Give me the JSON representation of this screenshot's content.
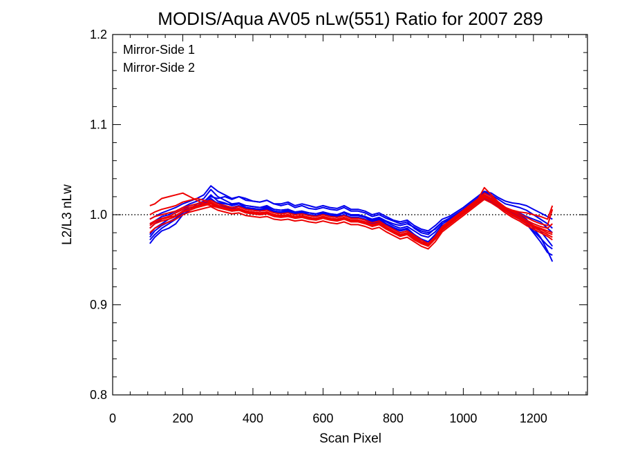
{
  "chart_data": {
    "type": "line",
    "title": "MODIS/Aqua AV05 nLw(551) Ratio for 2007 289",
    "xlabel": "Scan Pixel",
    "ylabel": "L2/L3 nLw",
    "xlim": [
      0,
      1354
    ],
    "ylim": [
      0.8,
      1.2
    ],
    "xticks": [
      0,
      200,
      400,
      600,
      800,
      1000,
      1200
    ],
    "xtick_labels": [
      "0",
      "200",
      "400",
      "600",
      "800",
      "1000",
      "1200"
    ],
    "yticks": [
      0.8,
      0.9,
      1.0,
      1.1,
      1.2
    ],
    "ytick_labels": [
      "0.8",
      "0.9",
      "1.0",
      "1.1",
      "1.2"
    ],
    "reference_line": {
      "y": 1.0,
      "style": "dotted",
      "color": "#000000"
    },
    "legend": {
      "placement": "top-left",
      "entries": [
        {
          "label": "Mirror-Side 1",
          "color": "#0000ee"
        },
        {
          "label": "Mirror-Side 2",
          "color": "#ee0000"
        }
      ]
    },
    "x": [
      106,
      120,
      140,
      160,
      180,
      200,
      220,
      240,
      260,
      280,
      300,
      320,
      340,
      360,
      380,
      400,
      420,
      440,
      460,
      480,
      500,
      520,
      540,
      560,
      580,
      600,
      620,
      640,
      660,
      680,
      700,
      720,
      740,
      760,
      780,
      800,
      820,
      840,
      860,
      880,
      900,
      920,
      940,
      960,
      980,
      1000,
      1020,
      1040,
      1060,
      1080,
      1100,
      1120,
      1140,
      1160,
      1180,
      1200,
      1220,
      1240,
      1254
    ],
    "series": [
      {
        "group": "Mirror-Side 1",
        "color": "#0000ee",
        "values": [
          0.968,
          0.975,
          0.982,
          0.985,
          0.99,
          1.0,
          1.005,
          1.012,
          1.015,
          1.02,
          1.018,
          1.02,
          1.017,
          1.02,
          1.018,
          1.015,
          1.014,
          1.016,
          1.012,
          1.01,
          1.012,
          1.008,
          1.01,
          1.007,
          1.006,
          1.008,
          1.006,
          1.005,
          1.008,
          1.004,
          1.004,
          1.002,
          0.998,
          1.0,
          0.996,
          0.993,
          0.99,
          0.992,
          0.985,
          0.98,
          0.978,
          0.985,
          0.992,
          0.995,
          1.0,
          1.003,
          1.01,
          1.015,
          1.018,
          1.015,
          1.012,
          1.008,
          1.003,
          1.0,
          0.995,
          0.985,
          0.975,
          0.96,
          0.948
        ]
      },
      {
        "group": "Mirror-Side 1",
        "color": "#0000ee",
        "values": [
          0.972,
          0.978,
          0.985,
          0.99,
          0.995,
          1.002,
          1.008,
          1.01,
          1.012,
          1.016,
          1.013,
          1.012,
          1.011,
          1.013,
          1.01,
          1.009,
          1.008,
          1.01,
          1.006,
          1.005,
          1.006,
          1.003,
          1.004,
          1.002,
          1.001,
          1.003,
          1.001,
          1.0,
          1.002,
          0.999,
          0.999,
          0.997,
          0.993,
          0.995,
          0.99,
          0.986,
          0.983,
          0.985,
          0.978,
          0.972,
          0.97,
          0.978,
          0.988,
          0.992,
          0.997,
          1.002,
          1.008,
          1.014,
          1.018,
          1.015,
          1.01,
          1.005,
          1.0,
          0.996,
          0.99,
          0.98,
          0.97,
          0.958,
          0.955
        ]
      },
      {
        "group": "Mirror-Side 1",
        "color": "#0000ee",
        "values": [
          0.978,
          0.985,
          0.99,
          0.995,
          0.998,
          1.004,
          1.008,
          1.01,
          1.013,
          1.018,
          1.012,
          1.01,
          1.008,
          1.01,
          1.007,
          1.006,
          1.005,
          1.007,
          1.004,
          1.003,
          1.004,
          1.001,
          1.002,
          1.0,
          0.999,
          1.001,
          0.999,
          0.998,
          1.0,
          0.997,
          0.997,
          0.995,
          0.992,
          0.994,
          0.989,
          0.985,
          0.982,
          0.984,
          0.978,
          0.973,
          0.97,
          0.976,
          0.985,
          0.99,
          0.996,
          1.002,
          1.009,
          1.016,
          1.022,
          1.018,
          1.012,
          1.006,
          1.002,
          0.998,
          0.993,
          0.988,
          0.982,
          0.972,
          0.965
        ]
      },
      {
        "group": "Mirror-Side 1",
        "color": "#0000ee",
        "values": [
          0.985,
          0.99,
          0.995,
          0.998,
          1.002,
          1.006,
          1.01,
          1.012,
          1.014,
          1.022,
          1.015,
          1.013,
          1.01,
          1.012,
          1.008,
          1.007,
          1.006,
          1.008,
          1.004,
          1.003,
          1.005,
          1.002,
          1.003,
          1.0,
          0.999,
          1.002,
          1.0,
          0.999,
          1.003,
          0.999,
          0.999,
          0.997,
          0.994,
          0.996,
          0.992,
          0.988,
          0.985,
          0.987,
          0.982,
          0.977,
          0.975,
          0.981,
          0.99,
          0.994,
          0.999,
          1.004,
          1.01,
          1.017,
          1.024,
          1.02,
          1.014,
          1.008,
          1.004,
          1.002,
          0.998,
          0.995,
          0.992,
          0.985,
          0.98
        ]
      },
      {
        "group": "Mirror-Side 1",
        "color": "#0000ee",
        "values": [
          0.99,
          0.993,
          0.998,
          1.0,
          1.004,
          1.008,
          1.012,
          1.015,
          1.018,
          1.028,
          1.02,
          1.016,
          1.012,
          1.013,
          1.01,
          1.009,
          1.008,
          1.009,
          1.006,
          1.005,
          1.006,
          1.003,
          1.004,
          1.002,
          1.001,
          1.003,
          1.001,
          1.0,
          1.003,
          1.0,
          1.0,
          0.998,
          0.995,
          0.997,
          0.993,
          0.99,
          0.988,
          0.99,
          0.986,
          0.982,
          0.98,
          0.984,
          0.992,
          0.996,
          1.001,
          1.006,
          1.012,
          1.018,
          1.025,
          1.022,
          1.017,
          1.012,
          1.01,
          1.008,
          1.005,
          1.0,
          0.995,
          0.99,
          0.985
        ]
      },
      {
        "group": "Mirror-Side 1",
        "color": "#0000ee",
        "values": [
          0.995,
          0.998,
          1.002,
          1.005,
          1.008,
          1.012,
          1.015,
          1.018,
          1.022,
          1.032,
          1.026,
          1.022,
          1.018,
          1.02,
          1.016,
          1.015,
          1.014,
          1.016,
          1.012,
          1.012,
          1.014,
          1.01,
          1.012,
          1.01,
          1.008,
          1.01,
          1.008,
          1.007,
          1.01,
          1.006,
          1.006,
          1.004,
          1.0,
          1.002,
          0.998,
          0.994,
          0.992,
          0.994,
          0.988,
          0.984,
          0.982,
          0.988,
          0.995,
          0.998,
          1.003,
          1.008,
          1.014,
          1.02,
          1.026,
          1.024,
          1.019,
          1.015,
          1.013,
          1.012,
          1.01,
          1.006,
          1.002,
          0.998,
          0.995
        ]
      },
      {
        "group": "Mirror-Side 1",
        "color": "#0000ee",
        "values": [
          0.975,
          0.982,
          0.988,
          0.992,
          0.996,
          1.003,
          1.006,
          1.009,
          1.011,
          1.014,
          1.01,
          1.009,
          1.007,
          1.009,
          1.006,
          1.005,
          1.004,
          1.006,
          1.003,
          1.002,
          1.003,
          1.0,
          1.001,
          0.999,
          0.998,
          1.0,
          0.998,
          0.997,
          0.999,
          0.996,
          0.996,
          0.994,
          0.99,
          0.992,
          0.988,
          0.984,
          0.98,
          0.982,
          0.976,
          0.97,
          0.968,
          0.975,
          0.986,
          0.991,
          0.996,
          1.001,
          1.007,
          1.013,
          1.017,
          1.014,
          1.009,
          1.004,
          0.999,
          0.995,
          0.99,
          0.982,
          0.974,
          0.966,
          0.962
        ]
      },
      {
        "group": "Mirror-Side 2",
        "color": "#ee0000",
        "values": [
          0.985,
          0.99,
          0.993,
          0.995,
          0.998,
          1.003,
          1.005,
          1.008,
          1.01,
          1.012,
          1.008,
          1.006,
          1.004,
          1.005,
          1.003,
          1.002,
          1.001,
          1.002,
          0.999,
          0.998,
          0.999,
          0.997,
          0.998,
          0.996,
          0.995,
          0.997,
          0.995,
          0.994,
          0.996,
          0.993,
          0.993,
          0.991,
          0.988,
          0.99,
          0.985,
          0.98,
          0.976,
          0.978,
          0.972,
          0.968,
          0.966,
          0.974,
          0.984,
          0.99,
          0.996,
          1.002,
          1.008,
          1.014,
          1.02,
          1.016,
          1.01,
          1.004,
          0.999,
          0.995,
          0.99,
          0.986,
          0.982,
          0.978,
          0.975
        ]
      },
      {
        "group": "Mirror-Side 2",
        "color": "#ee0000",
        "values": [
          0.99,
          0.993,
          0.996,
          0.998,
          1.002,
          1.006,
          1.008,
          1.01,
          1.012,
          1.014,
          1.01,
          1.008,
          1.006,
          1.007,
          1.004,
          1.003,
          1.002,
          1.003,
          1.0,
          0.999,
          1.0,
          0.998,
          0.999,
          0.997,
          0.996,
          0.998,
          0.996,
          0.995,
          0.997,
          0.994,
          0.994,
          0.992,
          0.989,
          0.991,
          0.986,
          0.982,
          0.978,
          0.98,
          0.975,
          0.97,
          0.967,
          0.975,
          0.986,
          0.992,
          0.998,
          1.004,
          1.01,
          1.016,
          1.022,
          1.018,
          1.012,
          1.006,
          1.001,
          0.997,
          0.992,
          0.988,
          0.985,
          0.982,
          0.98
        ]
      },
      {
        "group": "Mirror-Side 2",
        "color": "#ee0000",
        "values": [
          1.01,
          1.012,
          1.018,
          1.02,
          1.022,
          1.024,
          1.02,
          1.016,
          1.012,
          1.01,
          1.008,
          1.006,
          1.004,
          1.005,
          1.002,
          1.001,
          1.0,
          1.001,
          0.998,
          0.997,
          0.998,
          0.996,
          0.997,
          0.995,
          0.994,
          0.996,
          0.994,
          0.993,
          0.995,
          0.992,
          0.992,
          0.99,
          0.987,
          0.989,
          0.984,
          0.98,
          0.976,
          0.978,
          0.973,
          0.968,
          0.965,
          0.973,
          0.983,
          0.989,
          0.995,
          1.001,
          1.007,
          1.013,
          1.019,
          1.015,
          1.01,
          1.008,
          1.005,
          1.003,
          1.002,
          1.0,
          0.998,
          0.995,
          1.01
        ]
      },
      {
        "group": "Mirror-Side 2",
        "color": "#ee0000",
        "values": [
          0.995,
          0.998,
          1.0,
          1.002,
          1.004,
          1.008,
          1.01,
          1.012,
          1.014,
          1.016,
          1.012,
          1.01,
          1.008,
          1.009,
          1.006,
          1.005,
          1.004,
          1.005,
          1.002,
          1.001,
          1.002,
          1.0,
          1.001,
          0.999,
          0.998,
          1.0,
          0.998,
          0.997,
          0.999,
          0.996,
          0.996,
          0.994,
          0.991,
          0.993,
          0.988,
          0.984,
          0.98,
          0.982,
          0.977,
          0.972,
          0.968,
          0.976,
          0.987,
          0.993,
          0.999,
          1.005,
          1.011,
          1.017,
          1.024,
          1.02,
          1.014,
          1.008,
          1.003,
          0.999,
          0.994,
          0.99,
          0.987,
          0.985,
          0.99
        ]
      },
      {
        "group": "Mirror-Side 2",
        "color": "#ee0000",
        "values": [
          0.98,
          0.985,
          0.989,
          0.992,
          0.995,
          1.0,
          1.003,
          1.005,
          1.007,
          1.009,
          1.005,
          1.003,
          1.001,
          1.002,
          0.999,
          0.998,
          0.997,
          0.998,
          0.995,
          0.994,
          0.995,
          0.993,
          0.994,
          0.992,
          0.991,
          0.993,
          0.991,
          0.99,
          0.992,
          0.989,
          0.989,
          0.987,
          0.984,
          0.986,
          0.981,
          0.977,
          0.973,
          0.975,
          0.97,
          0.965,
          0.962,
          0.97,
          0.981,
          0.987,
          0.993,
          0.999,
          1.005,
          1.011,
          1.017,
          1.013,
          1.008,
          1.002,
          0.997,
          0.993,
          0.988,
          0.984,
          0.98,
          0.976,
          0.972
        ]
      },
      {
        "group": "Mirror-Side 2",
        "color": "#ee0000",
        "values": [
          1.0,
          1.003,
          1.006,
          1.008,
          1.01,
          1.014,
          1.016,
          1.018,
          1.016,
          1.014,
          1.01,
          1.008,
          1.006,
          1.007,
          1.004,
          1.003,
          1.002,
          1.003,
          1.0,
          0.999,
          1.0,
          0.998,
          0.999,
          0.997,
          0.996,
          0.998,
          0.996,
          0.995,
          0.997,
          0.994,
          0.994,
          0.992,
          0.989,
          0.991,
          0.986,
          0.982,
          0.978,
          0.98,
          0.975,
          0.97,
          0.966,
          0.974,
          0.985,
          0.991,
          0.997,
          1.003,
          1.009,
          1.016,
          1.03,
          1.022,
          1.014,
          1.008,
          1.004,
          1.001,
          0.997,
          0.993,
          0.99,
          0.988,
          1.006
        ]
      },
      {
        "group": "Mirror-Side 2",
        "color": "#ee0000",
        "values": [
          0.988,
          0.992,
          0.995,
          0.997,
          0.999,
          1.004,
          1.006,
          1.009,
          1.011,
          1.013,
          1.009,
          1.007,
          1.005,
          1.006,
          1.003,
          1.002,
          1.001,
          1.002,
          0.999,
          0.998,
          0.999,
          0.997,
          0.998,
          0.996,
          0.995,
          0.997,
          0.995,
          0.994,
          0.996,
          0.993,
          0.993,
          0.991,
          0.988,
          0.99,
          0.985,
          0.981,
          0.977,
          0.979,
          0.974,
          0.969,
          0.966,
          0.974,
          0.985,
          0.991,
          0.997,
          1.003,
          1.009,
          1.015,
          1.021,
          1.017,
          1.011,
          1.005,
          1.0,
          0.996,
          0.991,
          0.987,
          0.984,
          0.98,
          0.978
        ]
      }
    ]
  }
}
